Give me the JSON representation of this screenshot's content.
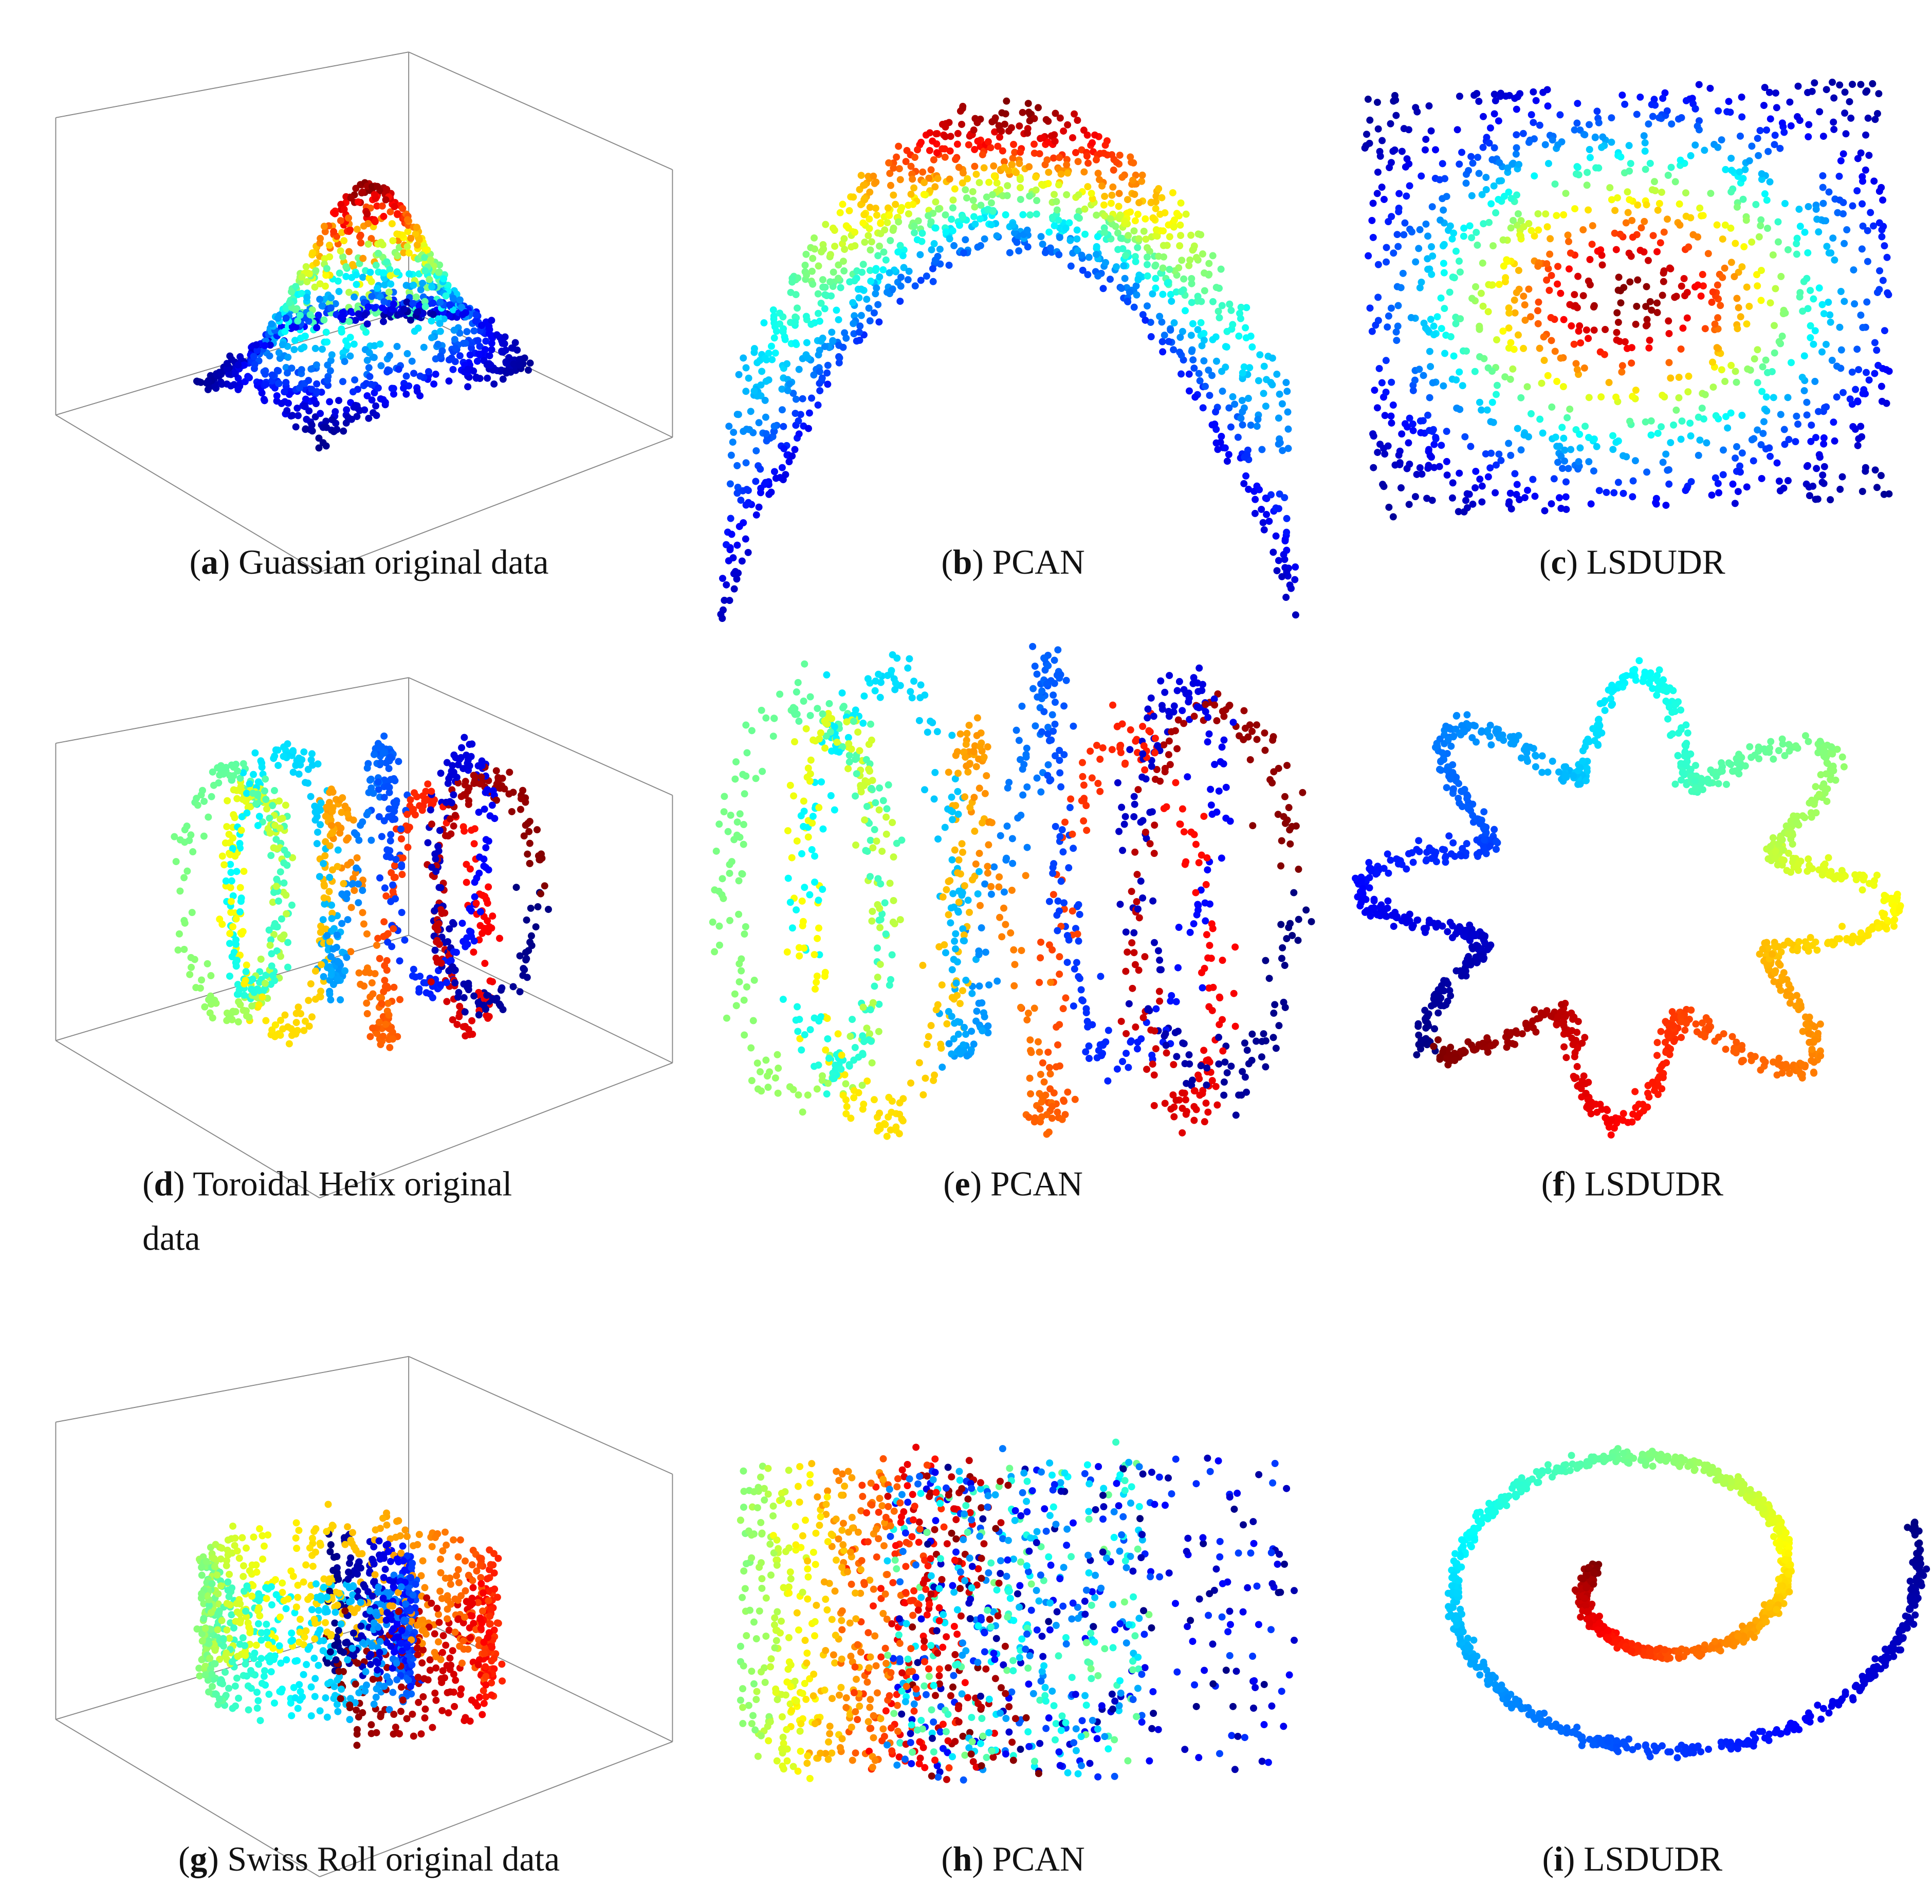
{
  "panels": [
    {
      "caption": [
        [
          "(",
          "a",
          ") Guassian original data"
        ]
      ]
    },
    {
      "caption": [
        [
          "(",
          "b",
          ") PCAN"
        ]
      ]
    },
    {
      "caption": [
        [
          "(",
          "c",
          ") LSDUDR"
        ]
      ]
    },
    {
      "caption": [
        [
          "(",
          "d",
          ") Toroidal Helix original"
        ],
        [
          "data"
        ]
      ]
    },
    {
      "caption": [
        [
          "(",
          "e",
          ") PCAN"
        ]
      ]
    },
    {
      "caption": [
        [
          "(",
          "f",
          ") LSDUDR"
        ]
      ]
    },
    {
      "caption": [
        [
          "(",
          "g",
          ") Swiss Roll original data"
        ]
      ]
    },
    {
      "caption": [
        [
          "(",
          "h",
          ") PCAN"
        ]
      ]
    },
    {
      "caption": [
        [
          "(",
          "i",
          ") LSDUDR"
        ]
      ]
    }
  ]
}
